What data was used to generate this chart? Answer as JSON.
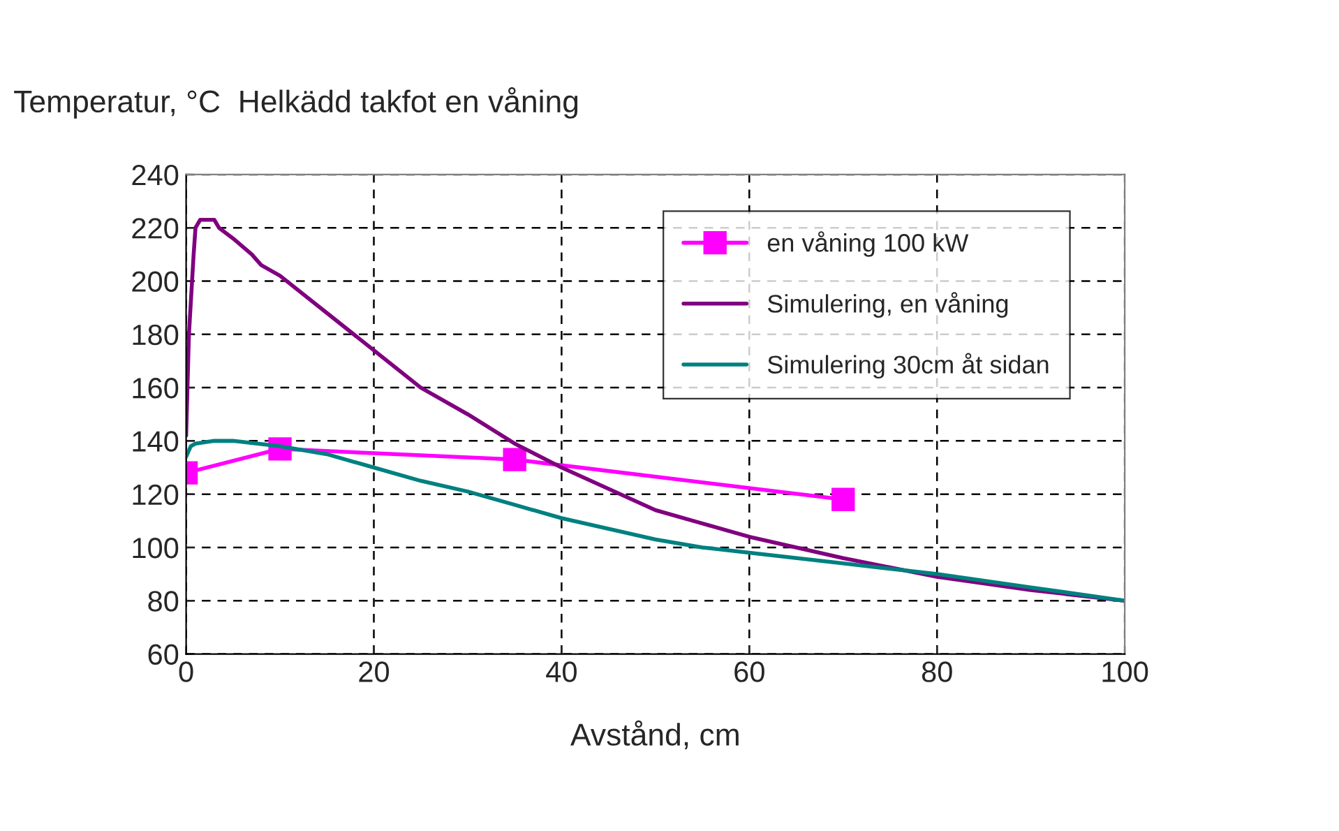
{
  "chart_data": {
    "type": "line",
    "title": "Temperatur, °C  Helkädd takfot en våning",
    "xlabel": "Avstånd, cm",
    "xlim": [
      0,
      100
    ],
    "xticks": [
      0,
      20,
      40,
      60,
      80,
      100
    ],
    "ylim": [
      60,
      240
    ],
    "yticks": [
      60,
      80,
      100,
      120,
      140,
      160,
      180,
      200,
      220,
      240
    ],
    "grid": true,
    "legend": "top right",
    "series": [
      {
        "name": "en våning 100 kW",
        "color": "#ff00ff",
        "marker": "square",
        "x": [
          0,
          10,
          35,
          70
        ],
        "values": [
          128,
          137,
          133,
          118
        ]
      },
      {
        "name": "Simulering, en våning",
        "color": "#800080",
        "marker": "none",
        "x": [
          0,
          0.3,
          0.8,
          1,
          1.5,
          3,
          3.5,
          5,
          7,
          8,
          10,
          15,
          20,
          25,
          30,
          35,
          40,
          45,
          50,
          55,
          60,
          70,
          80,
          90,
          100
        ],
        "values": [
          142,
          180,
          210,
          220,
          223,
          223,
          220,
          216,
          210,
          206,
          202,
          188,
          174,
          160,
          150,
          139,
          130,
          122,
          114,
          109,
          104,
          96,
          89,
          84,
          80
        ]
      },
      {
        "name": "Simulering 30cm åt sidan",
        "color": "#008080",
        "marker": "none",
        "x": [
          0,
          0.5,
          1,
          3,
          5,
          10,
          15,
          20,
          25,
          30,
          35,
          40,
          45,
          50,
          55,
          60,
          70,
          80,
          90,
          100
        ],
        "values": [
          134,
          138,
          139,
          140,
          140,
          138,
          135,
          130,
          125,
          121,
          116,
          111,
          107,
          103,
          100,
          98,
          94,
          90,
          85,
          80
        ]
      }
    ]
  }
}
